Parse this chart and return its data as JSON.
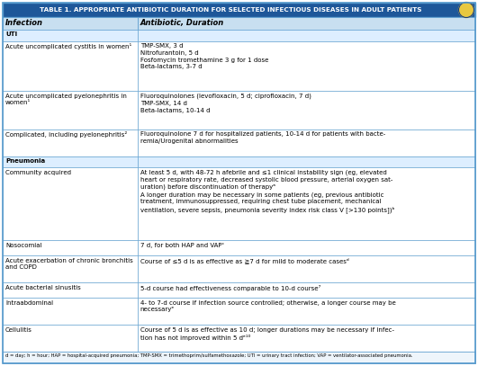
{
  "title": "TABLE 1. APPROPRIATE ANTIBIOTIC DURATION FOR SELECTED INFECTIOUS DISEASES IN ADULT PATIENTS",
  "title_bg": "#1e5799",
  "title_fg": "#ffffff",
  "icon_bg": "#e8c840",
  "icon_fg": "#1e5799",
  "header_bg": "#c8dff0",
  "header_fg": "#000000",
  "section_bg": "#ddeeff",
  "data_bg": "#ffffff",
  "border_color": "#5599cc",
  "footer_bg": "#eef5fb",
  "col_split": 0.285,
  "col1_header": "Infection",
  "col2_header": "Antibiotic, Duration",
  "footer": "d = day; h = hour; HAP = hospital-acquired pneumonia; TMP-SMX = trimethoprim/sulfamethoxazole; UTI = urinary tract infection; VAP = ventilator-associated pneumonia.",
  "rows": [
    {
      "type": "section",
      "col1": "UTI",
      "col2": "",
      "lines": 1
    },
    {
      "type": "data",
      "col1": "Acute uncomplicated cystitis in women¹",
      "col2": "TMP-SMX, 3 d\nNitrofurantoin, 5 d\nFosfomycin tromethamine 3 g for 1 dose\nBeta-lactams, 3-7 d",
      "lines": 4
    },
    {
      "type": "data",
      "col1": "Acute uncomplicated pyelonephritis in\nwomen¹",
      "col2": "Fluoroquinolones (levofloxacin, 5 d; ciprofloxacin, 7 d)\nTMP-SMX, 14 d\nBeta-lactams, 10-14 d",
      "lines": 3
    },
    {
      "type": "data",
      "col1": "Complicated, including pyelonephritis²",
      "col2": "Fluoroquinolone 7 d for hospitalized patients, 10-14 d for patients with bacte-\nremia/Urogenital abnormalities",
      "lines": 2
    },
    {
      "type": "section",
      "col1": "Pneumonia",
      "col2": "",
      "lines": 1
    },
    {
      "type": "data",
      "col1": "Community acquired",
      "col2": "At least 5 d, with 48-72 h afebrile and ≤1 clinical instability sign (eg, elevated\nheart or respiratory rate, decreased systolic blood pressure, arterial oxygen sat-\nuration) before discontinuation of therapyᵃ\nA longer duration may be necessary in some patients (eg, previous antibiotic\ntreatment, immunosuppressed, requiring chest tube placement, mechanical\nventilation, severe sepsis, pneumonia severity index risk class V [>130 points])ᵇ",
      "lines": 6
    },
    {
      "type": "data",
      "col1": "Nosocomial",
      "col2": "7 d, for both HAP and VAPᶜ",
      "lines": 1
    },
    {
      "type": "data",
      "col1": "Acute exacerbation of chronic bronchitis\nand COPD",
      "col2": "Course of ≤5 d is as effective as ≧7 d for mild to moderate casesᵈ",
      "lines": 2
    },
    {
      "type": "data",
      "col1": "Acute bacterial sinusitis",
      "col2": "5-d course had effectiveness comparable to 10-d course⁷",
      "lines": 1
    },
    {
      "type": "data",
      "col1": "Intraabdominal",
      "col2": "4- to 7-d course if infection source controlled; otherwise, a longer course may be\nnecessaryᵉ",
      "lines": 2
    },
    {
      "type": "data",
      "col1": "Cellulitis",
      "col2": "Course of 5 d is as effective as 10 d; longer durations may be necessary if infec-\ntion has not improved within 5 dᵉ¹⁰",
      "lines": 2
    }
  ]
}
